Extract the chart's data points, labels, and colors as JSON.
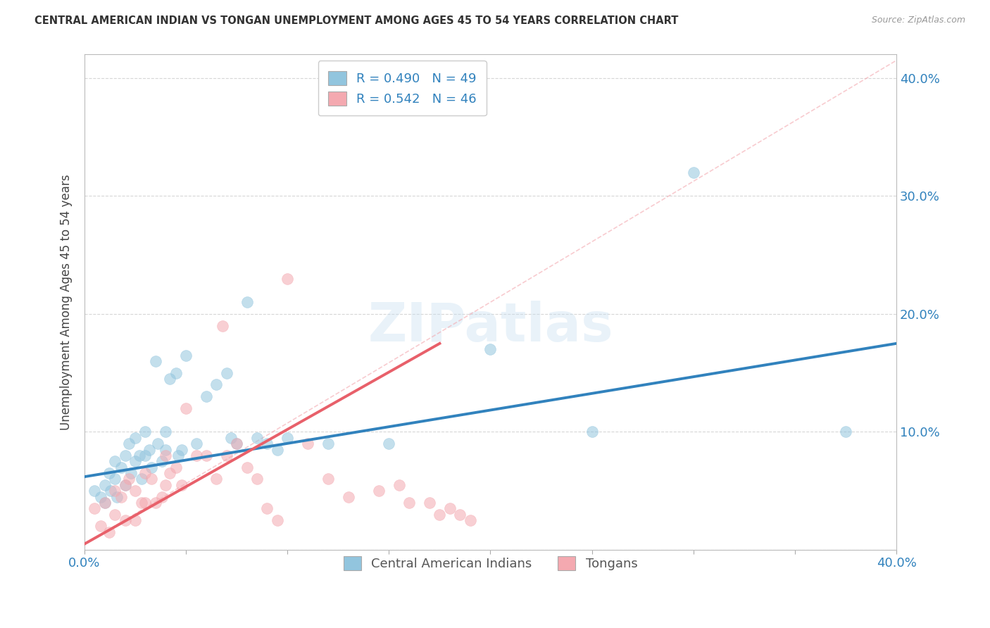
{
  "title": "CENTRAL AMERICAN INDIAN VS TONGAN UNEMPLOYMENT AMONG AGES 45 TO 54 YEARS CORRELATION CHART",
  "source": "Source: ZipAtlas.com",
  "ylabel": "Unemployment Among Ages 45 to 54 years",
  "xlim": [
    0.0,
    0.4
  ],
  "ylim": [
    0.0,
    0.42
  ],
  "legend_r_blue": "R = 0.490",
  "legend_n_blue": "N = 49",
  "legend_r_pink": "R = 0.542",
  "legend_n_pink": "N = 46",
  "legend_label_blue": "Central American Indians",
  "legend_label_pink": "Tongans",
  "blue_color": "#92c5de",
  "pink_color": "#f4a9b0",
  "blue_line_color": "#3182bd",
  "pink_line_color": "#e8606a",
  "dashed_line_color": "#f4a9b0",
  "watermark": "ZIPatlas",
  "blue_scatter_x": [
    0.005,
    0.008,
    0.01,
    0.01,
    0.012,
    0.013,
    0.015,
    0.015,
    0.016,
    0.018,
    0.02,
    0.02,
    0.022,
    0.023,
    0.025,
    0.025,
    0.027,
    0.028,
    0.03,
    0.03,
    0.032,
    0.033,
    0.035,
    0.036,
    0.038,
    0.04,
    0.04,
    0.042,
    0.045,
    0.046,
    0.048,
    0.05,
    0.055,
    0.06,
    0.065,
    0.07,
    0.072,
    0.075,
    0.08,
    0.085,
    0.09,
    0.095,
    0.1,
    0.12,
    0.15,
    0.2,
    0.25,
    0.3,
    0.375
  ],
  "blue_scatter_y": [
    0.05,
    0.045,
    0.055,
    0.04,
    0.065,
    0.05,
    0.075,
    0.06,
    0.045,
    0.07,
    0.08,
    0.055,
    0.09,
    0.065,
    0.095,
    0.075,
    0.08,
    0.06,
    0.1,
    0.08,
    0.085,
    0.07,
    0.16,
    0.09,
    0.075,
    0.1,
    0.085,
    0.145,
    0.15,
    0.08,
    0.085,
    0.165,
    0.09,
    0.13,
    0.14,
    0.15,
    0.095,
    0.09,
    0.21,
    0.095,
    0.09,
    0.085,
    0.095,
    0.09,
    0.09,
    0.17,
    0.1,
    0.32,
    0.1
  ],
  "pink_scatter_x": [
    0.005,
    0.008,
    0.01,
    0.012,
    0.015,
    0.015,
    0.018,
    0.02,
    0.02,
    0.022,
    0.025,
    0.025,
    0.028,
    0.03,
    0.03,
    0.033,
    0.035,
    0.038,
    0.04,
    0.04,
    0.042,
    0.045,
    0.048,
    0.05,
    0.055,
    0.06,
    0.065,
    0.068,
    0.07,
    0.075,
    0.08,
    0.085,
    0.09,
    0.095,
    0.1,
    0.11,
    0.12,
    0.13,
    0.145,
    0.155,
    0.16,
    0.17,
    0.175,
    0.18,
    0.185,
    0.19
  ],
  "pink_scatter_y": [
    0.035,
    0.02,
    0.04,
    0.015,
    0.05,
    0.03,
    0.045,
    0.055,
    0.025,
    0.06,
    0.05,
    0.025,
    0.04,
    0.065,
    0.04,
    0.06,
    0.04,
    0.045,
    0.08,
    0.055,
    0.065,
    0.07,
    0.055,
    0.12,
    0.08,
    0.08,
    0.06,
    0.19,
    0.08,
    0.09,
    0.07,
    0.06,
    0.035,
    0.025,
    0.23,
    0.09,
    0.06,
    0.045,
    0.05,
    0.055,
    0.04,
    0.04,
    0.03,
    0.035,
    0.03,
    0.025
  ],
  "blue_line_x": [
    0.0,
    0.4
  ],
  "blue_line_y": [
    0.062,
    0.175
  ],
  "pink_line_x": [
    0.0,
    0.175
  ],
  "pink_line_y": [
    0.005,
    0.175
  ],
  "dashed_line_x": [
    0.0,
    0.4
  ],
  "dashed_line_y": [
    0.005,
    0.415
  ],
  "background_color": "#ffffff",
  "grid_color": "#cccccc"
}
